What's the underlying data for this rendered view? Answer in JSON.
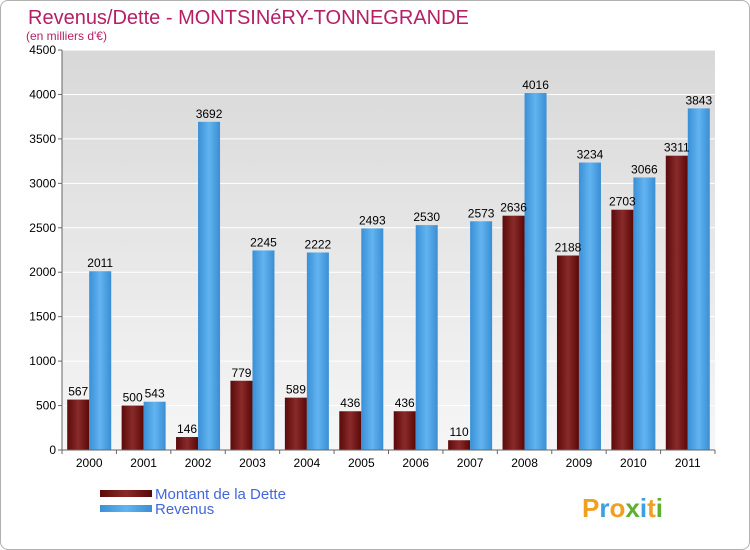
{
  "chart_data": {
    "type": "bar",
    "title": "Revenus/Dette - MONTSINéRY-TONNEGRANDE",
    "subtitle": "(en milliers d'€)",
    "categories": [
      "2000",
      "2001",
      "2002",
      "2003",
      "2004",
      "2005",
      "2006",
      "2007",
      "2008",
      "2009",
      "2010",
      "2011"
    ],
    "series": [
      {
        "name": "Montant de la Dette",
        "color": "#6b1010",
        "values": [
          567,
          500,
          146,
          779,
          589,
          436,
          436,
          110,
          2636,
          2188,
          2703,
          3311
        ]
      },
      {
        "name": "Revenus",
        "color": "#4aa4e6",
        "values": [
          2011,
          543,
          3692,
          2245,
          2222,
          2493,
          2530,
          2573,
          4016,
          3234,
          3066,
          3843
        ]
      }
    ],
    "ylim": [
      0,
      4500
    ],
    "yticks": [
      0,
      500,
      1000,
      1500,
      2000,
      2500,
      3000,
      3500,
      4000,
      4500
    ],
    "grid": true,
    "legend_position": "bottom-left"
  },
  "logo": {
    "letters": [
      "P",
      "r",
      "o",
      "x",
      "i",
      "t",
      "i"
    ],
    "colors": [
      "#f0a020",
      "#3aa0e0",
      "#f0a020",
      "#60b030",
      "#3aa0e0",
      "#f0a020",
      "#60b030"
    ]
  }
}
